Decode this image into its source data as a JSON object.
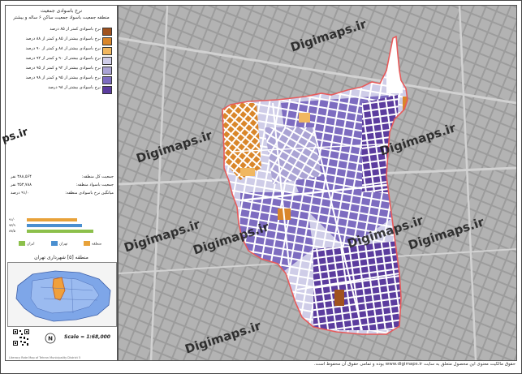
{
  "legend": {
    "title_line1": "نرخ باسوادی جمعیت",
    "title_line2": "منطقه جمعیت باسواد جمعیت ساکن ۶ ساله و بیشتر",
    "items": [
      {
        "label": "نرخ باسوادی کمتر از ۸۵ درصد",
        "color": "#a0521e"
      },
      {
        "label": "نرخ باسوادی بیشتر از ۸۵ و کمتر از ۸۸ درصد",
        "color": "#d9862a"
      },
      {
        "label": "نرخ باسوادی بیشتر از ۸۸ و کمتر از ۹۰ درصد",
        "color": "#f0b760"
      },
      {
        "label": "نرخ باسوادی بیشتر از ۹۰ و کمتر از ۹۲ درصد",
        "color": "#cfcde8"
      },
      {
        "label": "نرخ باسوادی بیشتر از ۹۲ و کمتر از ۹۵ درصد",
        "color": "#aaa3d4"
      },
      {
        "label": "نرخ باسوادی بیشتر از ۹۵ و کمتر از ۹۸ درصد",
        "color": "#7d6cc0"
      },
      {
        "label": "نرخ باسوادی بیشتر از ۹۸ درصد",
        "color": "#5b3c9e"
      }
    ]
  },
  "stats": {
    "total_population_label": "جمعیت کل منطقه:",
    "total_population_value": "۳۸۸,۵۶۴ نفر",
    "literate_population_label": "جمعیت باسواد منطقه:",
    "literate_population_value": "۳۵۳,۷۸۸ نفر",
    "avg_rate_label": "میانگین نرخ باسوادی منطقه:",
    "avg_rate_value": "۹۱/۰ درصد"
  },
  "bars": [
    {
      "value": "۹۱/۰",
      "color": "#e8a23a",
      "fraction": 0.62
    },
    {
      "value": "۹۳/۹",
      "color": "#4a8fd0",
      "fraction": 0.68
    },
    {
      "value": "۸۷/۵",
      "color": "#8cc04b",
      "fraction": 0.82
    }
  ],
  "mini_legend": [
    {
      "label": "منطقه",
      "color": "#e8a23a"
    },
    {
      "label": "تهران",
      "color": "#4a8fd0"
    },
    {
      "label": "ایران",
      "color": "#8cc04b"
    }
  ],
  "region_label": "منطقه [۵] شهرداری تهران",
  "scale": "Scale = 1:68,000",
  "watermarks": [
    "Digimaps.ir",
    "Digimaps.ir",
    "Digimaps.ir",
    "Digimaps.ir",
    "Digimaps.ir",
    "Digimaps.ir",
    "Digimaps.ir",
    "Digimaps.ir"
  ],
  "side_watermark": "ps.ir",
  "credit": "Literacy Rate Map of Tehran Municipality District 5",
  "footer": "حقوق مالکیت معنوی این محصول متعلق به سایت www.digimaps.ir بوده و تمامی حقوق آن محفوظ است.",
  "colors": {
    "boundary": "#e85a5a",
    "background": "#b9b9b9"
  }
}
